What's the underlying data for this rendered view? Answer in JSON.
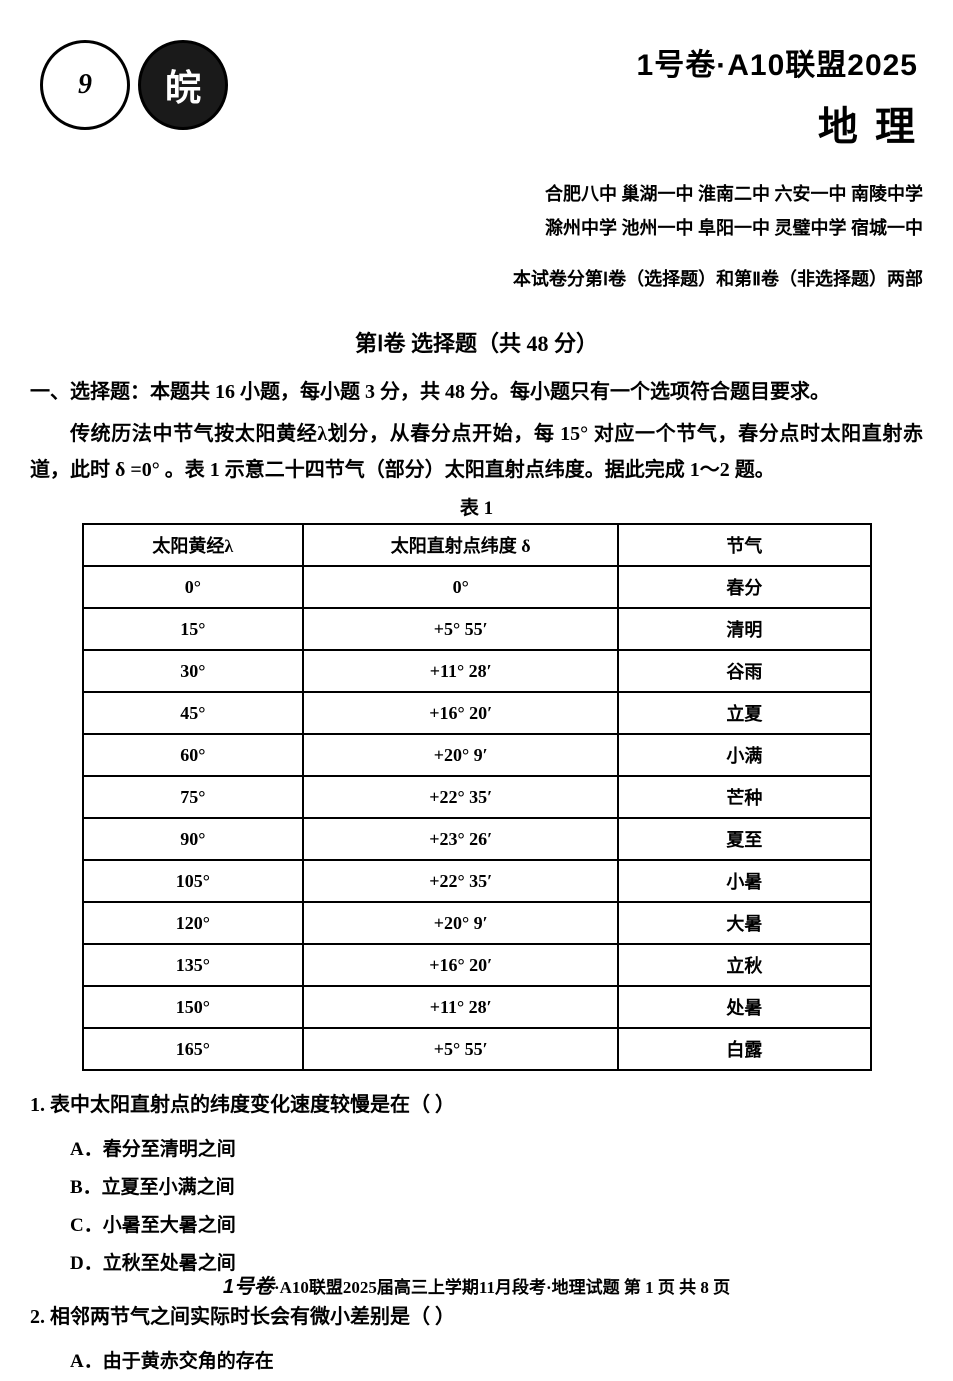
{
  "header": {
    "logo1_text": "9",
    "logo2_text": "皖",
    "title_line1": "1号卷·A10联盟2025",
    "title_line2": "地 理",
    "schools_line1": "合肥八中  巢湖一中  淮南二中  六安一中  南陵中学",
    "schools_line2": "滁州中学  池州一中  阜阳一中  灵璧中学  宿城一中",
    "exam_parts": "本试卷分第Ⅰ卷（选择题）和第Ⅱ卷（非选择题）两部"
  },
  "section": {
    "title": "第Ⅰ卷  选择题（共 48 分）",
    "instruction": "一、选择题：本题共 16 小题，每小题 3 分，共 48 分。每小题只有一个选项符合题目要求。",
    "passage": "传统历法中节气按太阳黄经λ划分，从春分点开始，每 15° 对应一个节气，春分点时太阳直射赤道，此时 δ =0° 。表 1 示意二十四节气（部分）太阳直射点纬度。据此完成 1～2 题。"
  },
  "table": {
    "caption": "表 1",
    "headers": [
      "太阳黄经λ",
      "太阳直射点纬度 δ",
      "节气"
    ],
    "col_widths": [
      "28%",
      "40%",
      "32%"
    ],
    "rows": [
      [
        "0°",
        "0°",
        "春分"
      ],
      [
        "15°",
        "+5° 55′",
        "清明"
      ],
      [
        "30°",
        "+11° 28′",
        "谷雨"
      ],
      [
        "45°",
        "+16° 20′",
        "立夏"
      ],
      [
        "60°",
        "+20° 9′",
        "小满"
      ],
      [
        "75°",
        "+22° 35′",
        "芒种"
      ],
      [
        "90°",
        "+23° 26′",
        "夏至"
      ],
      [
        "105°",
        "+22° 35′",
        "小暑"
      ],
      [
        "120°",
        "+20° 9′",
        "大暑"
      ],
      [
        "135°",
        "+16° 20′",
        "立秋"
      ],
      [
        "150°",
        "+11° 28′",
        "处暑"
      ],
      [
        "165°",
        "+5° 55′",
        "白露"
      ]
    ]
  },
  "questions": [
    {
      "stem": "1.  表中太阳直射点的纬度变化速度较慢是在（        ）",
      "options": [
        "A．春分至清明之间",
        "B．立夏至小满之间",
        "C．小暑至大暑之间",
        "D．立秋至处暑之间"
      ]
    },
    {
      "stem": "2.  相邻两节气之间实际时长会有微小差别是（        ）",
      "options": [
        "A．由于黄赤交角的存在"
      ]
    }
  ],
  "footer": {
    "prefix": "1号卷",
    "text": "·A10联盟2025届高三上学期11月段考·地理试题  第 1 页  共 8 页"
  }
}
